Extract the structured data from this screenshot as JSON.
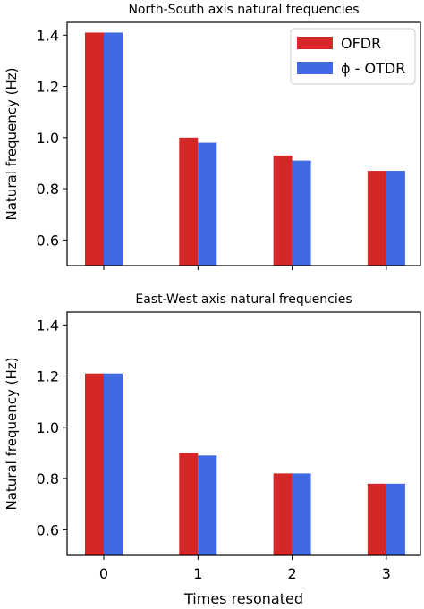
{
  "chart_data": [
    {
      "type": "bar",
      "title": "North-South axis natural frequencies",
      "xlabel": "",
      "ylabel": "Natural frequency (Hz)",
      "categories": [
        "0",
        "1",
        "2",
        "3"
      ],
      "show_xtick_labels": false,
      "ylim": [
        0.5,
        1.45
      ],
      "yticks": [
        "0.6",
        "0.8",
        "1.0",
        "1.2",
        "1.4"
      ],
      "grid": false,
      "legend": "top-right",
      "series": [
        {
          "name": "OFDR",
          "color": "#d62728",
          "values": [
            1.41,
            1.0,
            0.93,
            0.87
          ]
        },
        {
          "name": "ϕ - OTDR",
          "color": "#4169e1",
          "values": [
            1.41,
            0.98,
            0.91,
            0.87
          ]
        }
      ]
    },
    {
      "type": "bar",
      "title": "East-West axis natural frequencies",
      "xlabel": "Times resonated",
      "ylabel": "Natural frequency (Hz)",
      "categories": [
        "0",
        "1",
        "2",
        "3"
      ],
      "show_xtick_labels": true,
      "ylim": [
        0.5,
        1.45
      ],
      "yticks": [
        "0.6",
        "0.8",
        "1.0",
        "1.2",
        "1.4"
      ],
      "grid": false,
      "legend": "none",
      "series": [
        {
          "name": "OFDR",
          "color": "#d62728",
          "values": [
            1.21,
            0.9,
            0.82,
            0.78
          ]
        },
        {
          "name": "ϕ - OTDR",
          "color": "#4169e1",
          "values": [
            1.21,
            0.89,
            0.82,
            0.78
          ]
        }
      ]
    }
  ]
}
